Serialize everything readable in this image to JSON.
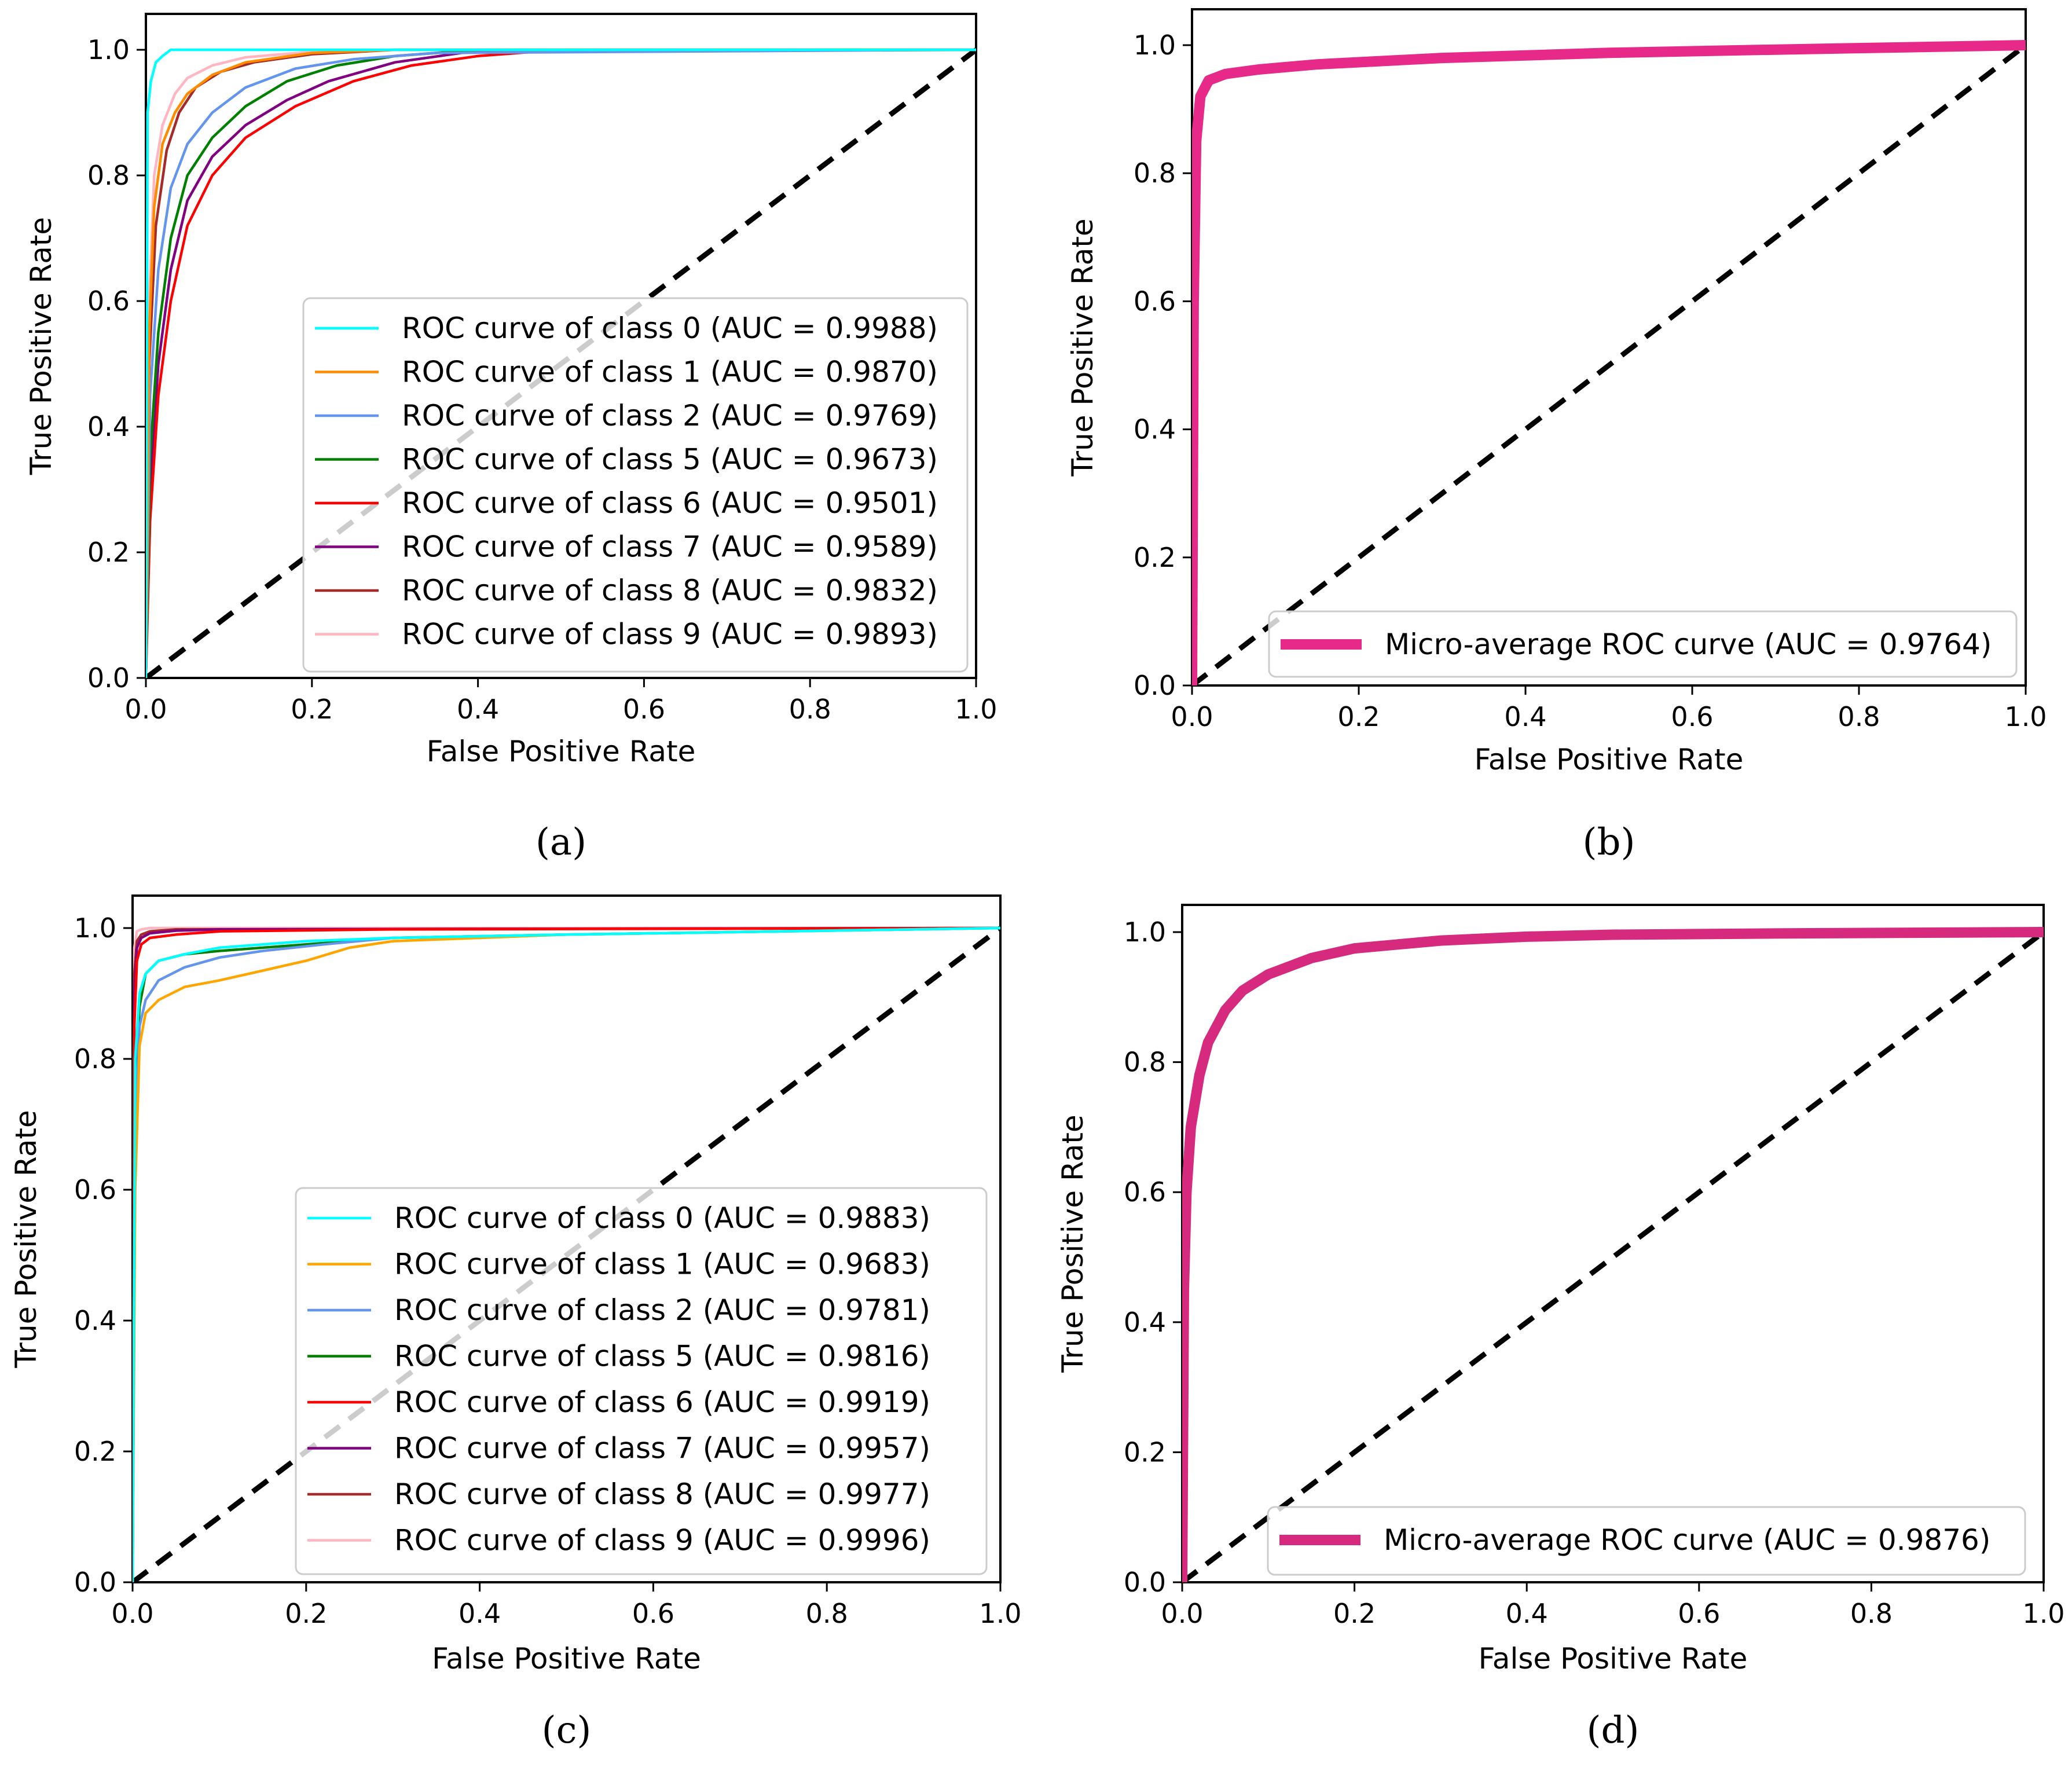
{
  "chart_data": [
    {
      "type": "line",
      "panel_label": "(a)",
      "xlabel": "False Positive Rate",
      "ylabel": "True Positive Rate",
      "xlim": [
        0,
        1
      ],
      "ylim": [
        0,
        1
      ],
      "xticks": [
        "0.0",
        "0.2",
        "0.4",
        "0.6",
        "0.8",
        "1.0"
      ],
      "yticks": [
        "0.0",
        "0.2",
        "0.4",
        "0.6",
        "0.8",
        "1.0"
      ],
      "legend_position": "lower-right",
      "diagonal": true,
      "series": [
        {
          "name": "ROC curve of class 0 (AUC = 0.9988)",
          "color": "#00ffff",
          "x": [
            0,
            0.002,
            0.006,
            0.012,
            0.02,
            0.03,
            0.05,
            1.0
          ],
          "y": [
            0,
            0.9,
            0.95,
            0.98,
            0.99,
            1.0,
            1.0,
            1.0
          ]
        },
        {
          "name": "ROC curve of class 1 (AUC = 0.9870)",
          "color": "#ff8c00",
          "x": [
            0,
            0.004,
            0.01,
            0.02,
            0.035,
            0.05,
            0.08,
            0.12,
            0.2,
            0.3,
            1.0
          ],
          "y": [
            0,
            0.55,
            0.75,
            0.85,
            0.9,
            0.93,
            0.96,
            0.98,
            0.995,
            1.0,
            1.0
          ]
        },
        {
          "name": "ROC curve of class 2 (AUC = 0.9769)",
          "color": "#6495ed",
          "x": [
            0,
            0.005,
            0.015,
            0.03,
            0.05,
            0.08,
            0.12,
            0.18,
            0.25,
            0.35,
            1.0
          ],
          "y": [
            0,
            0.45,
            0.65,
            0.78,
            0.85,
            0.9,
            0.94,
            0.97,
            0.985,
            0.995,
            1.0
          ]
        },
        {
          "name": "ROC curve of class 5 (AUC = 0.9673)",
          "color": "#008000",
          "x": [
            0,
            0.005,
            0.015,
            0.03,
            0.05,
            0.08,
            0.12,
            0.17,
            0.23,
            0.3,
            0.4,
            1.0
          ],
          "y": [
            0,
            0.35,
            0.55,
            0.7,
            0.8,
            0.86,
            0.91,
            0.95,
            0.975,
            0.99,
            1.0,
            1.0
          ]
        },
        {
          "name": "ROC curve of class 6 (AUC = 0.9501)",
          "color": "#ff0000",
          "x": [
            0,
            0.005,
            0.015,
            0.03,
            0.05,
            0.08,
            0.12,
            0.18,
            0.25,
            0.32,
            0.4,
            0.5,
            1.0
          ],
          "y": [
            0,
            0.25,
            0.45,
            0.6,
            0.72,
            0.8,
            0.86,
            0.91,
            0.95,
            0.975,
            0.99,
            1.0,
            1.0
          ]
        },
        {
          "name": "ROC curve of class 7 (AUC = 0.9589)",
          "color": "#800080",
          "x": [
            0,
            0.005,
            0.015,
            0.03,
            0.05,
            0.08,
            0.12,
            0.17,
            0.22,
            0.3,
            0.38,
            0.45,
            1.0
          ],
          "y": [
            0,
            0.3,
            0.5,
            0.65,
            0.76,
            0.83,
            0.88,
            0.92,
            0.95,
            0.98,
            0.995,
            1.0,
            1.0
          ]
        },
        {
          "name": "ROC curve of class 8 (AUC = 0.9832)",
          "color": "#a52a2a",
          "x": [
            0,
            0.004,
            0.012,
            0.025,
            0.04,
            0.06,
            0.09,
            0.13,
            0.2,
            0.3,
            1.0
          ],
          "y": [
            0,
            0.5,
            0.72,
            0.84,
            0.9,
            0.94,
            0.965,
            0.98,
            0.993,
            1.0,
            1.0
          ]
        },
        {
          "name": "ROC curve of class 9 (AUC = 0.9893)",
          "color": "#ffb6c1",
          "x": [
            0,
            0.004,
            0.01,
            0.02,
            0.035,
            0.05,
            0.08,
            0.12,
            0.2,
            0.3,
            1.0
          ],
          "y": [
            0,
            0.6,
            0.8,
            0.88,
            0.93,
            0.955,
            0.975,
            0.988,
            0.997,
            1.0,
            1.0
          ]
        }
      ]
    },
    {
      "type": "line",
      "panel_label": "(b)",
      "xlabel": "False Positive Rate",
      "ylabel": "True Positive Rate",
      "xlim": [
        0,
        1
      ],
      "ylim": [
        0,
        1
      ],
      "xticks": [
        "0.0",
        "0.2",
        "0.4",
        "0.6",
        "0.8",
        "1.0"
      ],
      "yticks": [
        "0.0",
        "0.2",
        "0.4",
        "0.6",
        "0.8",
        "1.0"
      ],
      "legend_position": "lower-right",
      "diagonal": true,
      "series": [
        {
          "name": "Micro-average ROC curve (AUC = 0.9764)",
          "color": "#e7298a",
          "thick": true,
          "x": [
            0,
            0.002,
            0.005,
            0.01,
            0.02,
            0.04,
            0.08,
            0.15,
            0.3,
            0.5,
            0.7,
            1.0
          ],
          "y": [
            0,
            0.6,
            0.85,
            0.92,
            0.945,
            0.955,
            0.962,
            0.97,
            0.98,
            0.988,
            0.993,
            1.0
          ]
        }
      ]
    },
    {
      "type": "line",
      "panel_label": "(c)",
      "xlabel": "False Positive Rate",
      "ylabel": "True Positive Rate",
      "xlim": [
        0,
        1
      ],
      "ylim": [
        0,
        1.05
      ],
      "xticks": [
        "0.0",
        "0.2",
        "0.4",
        "0.6",
        "0.8",
        "1.0"
      ],
      "yticks": [
        "0.0",
        "0.2",
        "0.4",
        "0.6",
        "0.8",
        "1.0"
      ],
      "legend_position": "lower-right",
      "diagonal": true,
      "series": [
        {
          "name": "ROC curve of class 0 (AUC = 0.9883)",
          "color": "#00ffff",
          "x": [
            0,
            0.003,
            0.008,
            0.015,
            0.03,
            0.06,
            0.1,
            0.2,
            0.3,
            0.5,
            1.0
          ],
          "y": [
            0,
            0.8,
            0.9,
            0.93,
            0.95,
            0.96,
            0.97,
            0.98,
            0.985,
            0.99,
            1.0
          ]
        },
        {
          "name": "ROC curve of class 1 (AUC = 0.9683)",
          "color": "#ffa500",
          "x": [
            0,
            0.003,
            0.008,
            0.015,
            0.03,
            0.06,
            0.1,
            0.15,
            0.2,
            0.25,
            0.3,
            0.5,
            1.0
          ],
          "y": [
            0,
            0.6,
            0.82,
            0.87,
            0.89,
            0.91,
            0.92,
            0.935,
            0.95,
            0.97,
            0.98,
            0.99,
            1.0
          ]
        },
        {
          "name": "ROC curve of class 2 (AUC = 0.9781)",
          "color": "#6495ed",
          "x": [
            0,
            0.003,
            0.008,
            0.015,
            0.03,
            0.06,
            0.1,
            0.15,
            0.22,
            0.3,
            0.5,
            1.0
          ],
          "y": [
            0,
            0.7,
            0.85,
            0.89,
            0.92,
            0.94,
            0.955,
            0.965,
            0.975,
            0.985,
            0.99,
            1.0
          ]
        },
        {
          "name": "ROC curve of class 5 (AUC = 0.9816)",
          "color": "#008000",
          "x": [
            0,
            0.003,
            0.008,
            0.015,
            0.03,
            0.06,
            0.1,
            0.2,
            0.3,
            0.5,
            1.0
          ],
          "y": [
            0,
            0.75,
            0.88,
            0.93,
            0.95,
            0.96,
            0.965,
            0.975,
            0.985,
            0.99,
            1.0
          ]
        },
        {
          "name": "ROC curve of class 6 (AUC = 0.9919)",
          "color": "#ff0000",
          "x": [
            0,
            0.002,
            0.005,
            0.01,
            0.02,
            0.05,
            0.1,
            0.3,
            1.0
          ],
          "y": [
            0,
            0.85,
            0.95,
            0.975,
            0.985,
            0.99,
            0.995,
            0.998,
            1.0
          ]
        },
        {
          "name": "ROC curve of class 7 (AUC = 0.9957)",
          "color": "#800080",
          "x": [
            0,
            0.002,
            0.005,
            0.01,
            0.02,
            0.05,
            0.1,
            1.0
          ],
          "y": [
            0,
            0.9,
            0.97,
            0.985,
            0.992,
            0.996,
            0.998,
            1.0
          ]
        },
        {
          "name": "ROC curve of class 8 (AUC = 0.9977)",
          "color": "#a52a2a",
          "x": [
            0,
            0.002,
            0.005,
            0.01,
            0.02,
            0.05,
            1.0
          ],
          "y": [
            0,
            0.93,
            0.98,
            0.99,
            0.995,
            0.998,
            1.0
          ]
        },
        {
          "name": "ROC curve of class 9 (AUC = 0.9996)",
          "color": "#ffb6c1",
          "x": [
            0,
            0.002,
            0.005,
            0.01,
            0.02,
            1.0
          ],
          "y": [
            0,
            0.97,
            0.995,
            0.998,
            1.0,
            1.0
          ]
        }
      ]
    },
    {
      "type": "line",
      "panel_label": "(d)",
      "xlabel": "False Positive Rate",
      "ylabel": "True Positive Rate",
      "xlim": [
        0,
        1
      ],
      "ylim": [
        0,
        1.04
      ],
      "xticks": [
        "0.0",
        "0.2",
        "0.4",
        "0.6",
        "0.8",
        "1.0"
      ],
      "yticks": [
        "0.0",
        "0.2",
        "0.4",
        "0.6",
        "0.8",
        "1.0"
      ],
      "legend_position": "lower-right",
      "diagonal": true,
      "series": [
        {
          "name": "Micro-average ROC curve (AUC = 0.9876)",
          "color": "#d62a7e",
          "thick": true,
          "x": [
            0,
            0.002,
            0.005,
            0.01,
            0.02,
            0.03,
            0.05,
            0.07,
            0.1,
            0.15,
            0.2,
            0.3,
            0.4,
            0.5,
            0.7,
            1.0
          ],
          "y": [
            0,
            0.45,
            0.6,
            0.7,
            0.78,
            0.83,
            0.88,
            0.91,
            0.935,
            0.96,
            0.975,
            0.987,
            0.993,
            0.996,
            0.998,
            1.0
          ]
        }
      ]
    }
  ]
}
